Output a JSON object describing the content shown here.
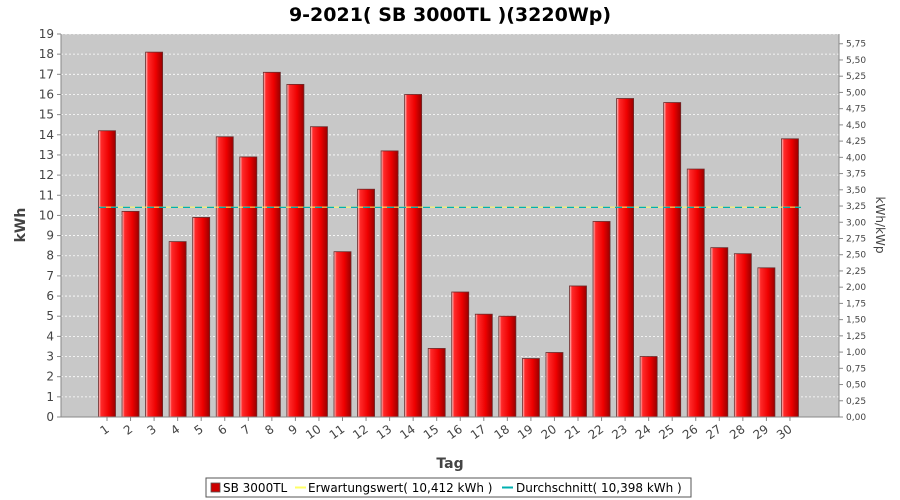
{
  "chart_data": {
    "type": "bar",
    "title": "9-2021( SB 3000TL )(3220Wp)",
    "xlabel": "Tag",
    "ylabel": "kWh",
    "y2label": "kWh/kWp",
    "ylim": [
      0,
      19
    ],
    "y2lim": [
      0,
      5.9
    ],
    "y_ticks": [
      "0",
      "1",
      "2",
      "3",
      "4",
      "5",
      "6",
      "7",
      "8",
      "9",
      "10",
      "11",
      "12",
      "13",
      "14",
      "15",
      "16",
      "17",
      "18",
      "19"
    ],
    "y2_ticks": [
      "0,00",
      "0,25",
      "0,50",
      "0,75",
      "1,00",
      "1,25",
      "1,50",
      "1,75",
      "2,00",
      "2,25",
      "2,50",
      "2,75",
      "3,00",
      "3,25",
      "3,50",
      "3,75",
      "4,00",
      "4,25",
      "4,50",
      "4,75",
      "5,00",
      "5,25",
      "5,50",
      "5,75"
    ],
    "y2_tick_values": [
      0,
      0.25,
      0.5,
      0.75,
      1,
      1.25,
      1.5,
      1.75,
      2,
      2.25,
      2.5,
      2.75,
      3,
      3.25,
      3.5,
      3.75,
      4,
      4.25,
      4.5,
      4.75,
      5,
      5.25,
      5.5,
      5.75
    ],
    "grid": true,
    "legend_position": "bottom",
    "categories": [
      "1",
      "2",
      "3",
      "4",
      "5",
      "6",
      "7",
      "8",
      "9",
      "10",
      "11",
      "12",
      "13",
      "14",
      "15",
      "16",
      "17",
      "18",
      "19",
      "20",
      "21",
      "22",
      "23",
      "24",
      "25",
      "26",
      "27",
      "28",
      "29",
      "30"
    ],
    "series": [
      {
        "name": "SB 3000TL",
        "color": "#ff0000",
        "values": [
          14.2,
          10.2,
          18.1,
          8.7,
          9.9,
          13.9,
          12.9,
          17.1,
          16.5,
          14.4,
          8.2,
          11.3,
          13.2,
          16.0,
          3.4,
          6.2,
          5.1,
          5.0,
          2.9,
          3.2,
          6.5,
          9.7,
          15.8,
          3.0,
          15.6,
          12.3,
          8.4,
          8.1,
          7.4,
          13.8
        ]
      }
    ],
    "expected": {
      "label": "Erwartungswert( 10,412 kWh )",
      "value": 10.412,
      "color": "#ffff66"
    },
    "average": {
      "label": "Durchschnitt( 10,398 kWh )",
      "value": 10.398,
      "color": "#00b0b0"
    }
  }
}
